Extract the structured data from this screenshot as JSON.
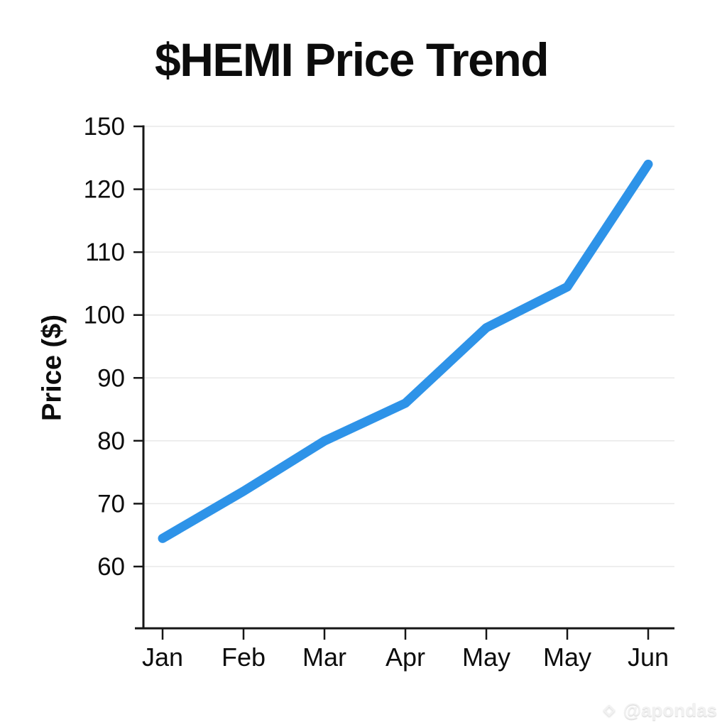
{
  "title": "$HEMI Price Trend",
  "watermark": {
    "handle": "@apondas",
    "icon": "diamond-logo-icon"
  },
  "chart_data": {
    "type": "line",
    "title": "$HEMI Price Trend",
    "xlabel": "",
    "ylabel": "Price ($)",
    "categories": [
      "Jan",
      "Feb",
      "Mar",
      "Apr",
      "May",
      "May",
      "Jun"
    ],
    "series": [
      {
        "name": "$HEMI price",
        "values": [
          64.5,
          72,
          80,
          86,
          98,
          104.5,
          124
        ]
      }
    ],
    "y_tick_labels": [
      "150",
      "120",
      "110",
      "100",
      "90",
      "80",
      "70",
      "60"
    ],
    "ylim": [
      50,
      130
    ],
    "grid": true,
    "legend": "none",
    "line_color": "#2e93e8",
    "axis_color": "#161616",
    "grid_color": "#e8e8e8"
  }
}
